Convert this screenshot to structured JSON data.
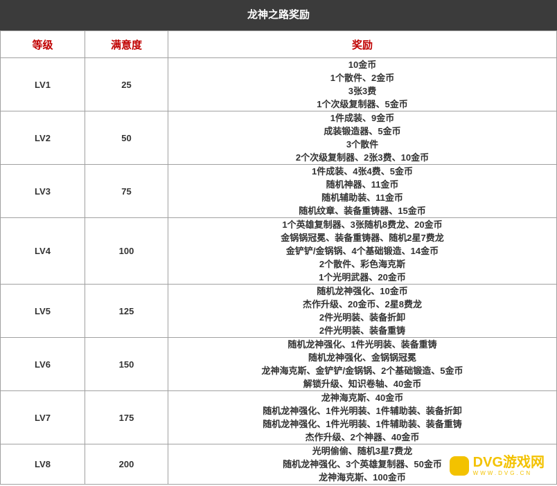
{
  "header": {
    "title": "龙神之路奖励"
  },
  "table": {
    "columns": [
      "等级",
      "满意度",
      "奖励"
    ],
    "rows": [
      [
        "LV1",
        25,
        [
          "10金币",
          "1个散件、2金币",
          "3张3费",
          "1个次级复制器、5金币"
        ]
      ],
      [
        "LV2",
        50,
        [
          "1件成装、9金币",
          "成装锻造器、5金币",
          "3个散件",
          "2个次级复制器、2张3费、10金币"
        ]
      ],
      [
        "LV3",
        75,
        [
          "1件成装、4张4费、5金币",
          "随机神器、11金币",
          "随机辅助装、11金币",
          "随机纹章、装备重铸器、15金币"
        ]
      ],
      [
        "LV4",
        100,
        [
          "1个英雄复制器、3张随机8费龙、20金币",
          "金锅锅冠冕、装备重铸器、随机2星7费龙",
          "金铲铲/金锅锅、4个基础锻造、14金币",
          "2个散件、彩色海克斯",
          "1个光明武器、20金币"
        ]
      ],
      [
        "LV5",
        125,
        [
          "随机龙神强化、10金币",
          "杰作升级、20金币、2星8费龙",
          "2件光明装、装备折卸",
          "2件光明装、装备重铸"
        ]
      ],
      [
        "LV6",
        150,
        [
          "随机龙神强化、1件光明装、装备重铸",
          "随机龙神强化、金锅锅冠冕",
          "龙神海克斯、金铲铲/金锅锅、2个基础锻造、5金币",
          "解锁升级、知识卷轴、40金币"
        ]
      ],
      [
        "LV7",
        175,
        [
          "龙神海克斯、40金币",
          "随机龙神强化、1件光明装、1件辅助装、装备折卸",
          "随机龙神强化、1件光明装、1件辅助装、装备重铸",
          "杰作升级、2个神器、40金币"
        ]
      ],
      [
        "LV8",
        200,
        [
          "光明偷偷、随机3星7费龙",
          "随机龙神强化、3个英雄复制器、50金币",
          "龙神海克斯、100金币"
        ]
      ]
    ]
  },
  "watermark": {
    "brand": "DVG游戏网",
    "url": "WWW.DVG.CN"
  }
}
